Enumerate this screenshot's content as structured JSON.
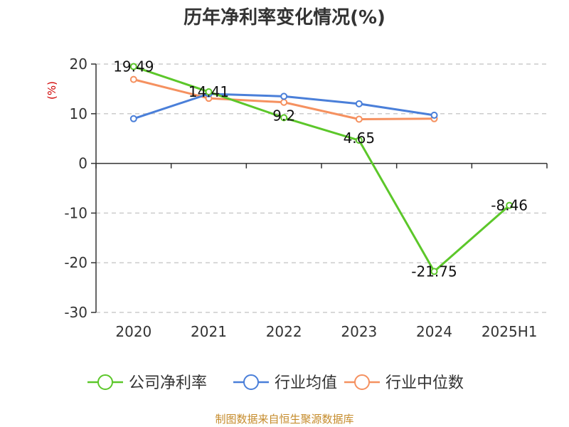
{
  "chart_data": {
    "type": "line",
    "title": "历年净利率变化情况(%)",
    "ylabel": "(%)",
    "xlabel": "",
    "categories": [
      "2020",
      "2021",
      "2022",
      "2023",
      "2024",
      "2025H1"
    ],
    "ylim": [
      -30,
      20
    ],
    "yticks": [
      20,
      10,
      0,
      -10,
      -20,
      -30
    ],
    "grid": true,
    "legend_position": "bottom",
    "series": [
      {
        "name": "公司净利率",
        "color": "#5cc72a",
        "values": [
          19.49,
          14.41,
          9.2,
          4.65,
          -21.75,
          -8.46
        ],
        "labels": [
          "19.49",
          "14.41",
          "9.2",
          "4.65",
          "-21.75",
          "-8.46"
        ],
        "show_labels": true
      },
      {
        "name": "行业均值",
        "color": "#4a7fd9",
        "values": [
          9.0,
          14.0,
          13.5,
          12.0,
          9.7,
          null
        ],
        "show_labels": false
      },
      {
        "name": "行业中位数",
        "color": "#f59160",
        "values": [
          16.9,
          13.1,
          12.3,
          8.9,
          9.0,
          null
        ],
        "show_labels": false
      }
    ]
  },
  "footer": {
    "source": "制图数据来自恒生聚源数据库"
  }
}
